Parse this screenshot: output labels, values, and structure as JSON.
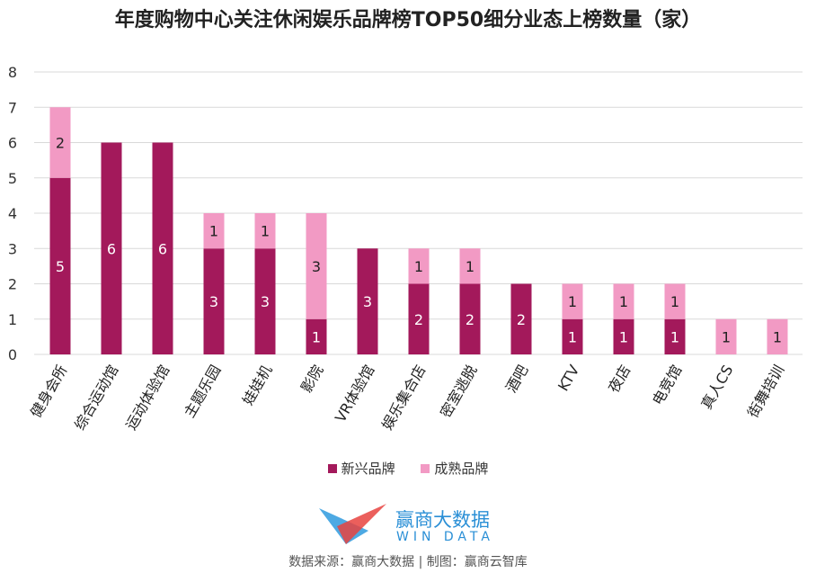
{
  "chart_data": {
    "type": "bar",
    "stacked": true,
    "title": "年度购物中心关注休闲娱乐品牌榜TOP50细分业态上榜数量（家）",
    "categories": [
      "健身会所",
      "综合运动馆",
      "运动体验馆",
      "主题乐园",
      "娃娃机",
      "影院",
      "VR体验馆",
      "娱乐集合店",
      "密室逃脱",
      "酒吧",
      "KTV",
      "夜店",
      "电竞馆",
      "真人CS",
      "街舞培训"
    ],
    "series": [
      {
        "name": "新兴品牌",
        "color": "#a3195b",
        "values": [
          5,
          6,
          6,
          3,
          3,
          1,
          3,
          2,
          2,
          2,
          1,
          1,
          1,
          0,
          0
        ]
      },
      {
        "name": "成熟品牌",
        "color": "#f29ac4",
        "values": [
          2,
          0,
          0,
          1,
          1,
          3,
          0,
          1,
          1,
          0,
          1,
          1,
          1,
          1,
          1
        ]
      }
    ],
    "ylim": [
      0,
      8
    ],
    "yticks": [
      "0",
      "1",
      "2",
      "3",
      "4",
      "5",
      "6",
      "7",
      "8"
    ],
    "grid": true,
    "legend_position": "bottom"
  },
  "logo": {
    "cn": "赢商大数据",
    "en": "WIN DATA"
  },
  "footer": "数据来源：赢商大数据 | 制图：赢商云智库"
}
